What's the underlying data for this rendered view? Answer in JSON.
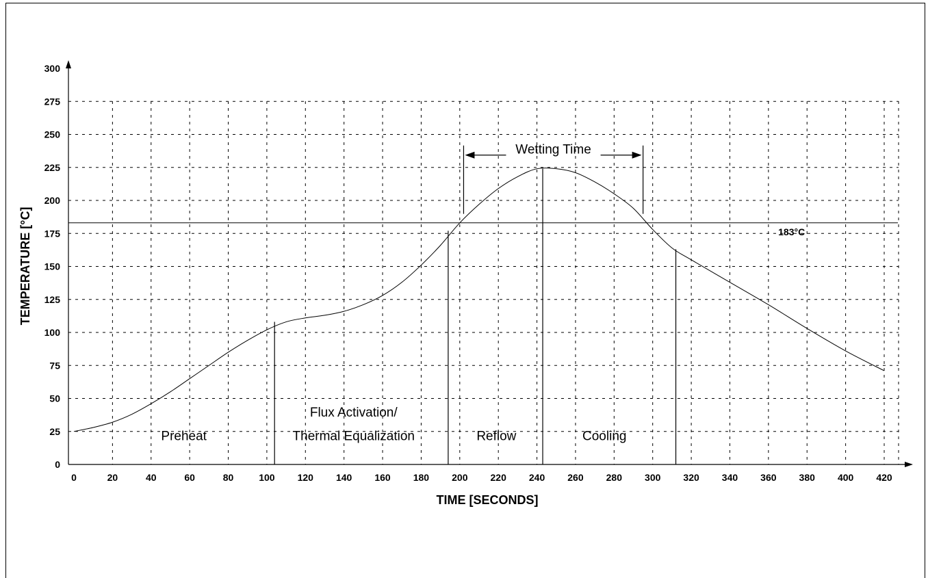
{
  "chart_data": {
    "type": "line",
    "xlabel": "TIME [SECONDS]",
    "ylabel": "TEMPERATURE [°C]",
    "xlim": [
      0,
      420
    ],
    "ylim": [
      0,
      300
    ],
    "xticks": [
      0,
      20,
      40,
      60,
      80,
      100,
      120,
      140,
      160,
      180,
      200,
      220,
      240,
      260,
      280,
      300,
      320,
      340,
      360,
      380,
      400,
      420
    ],
    "yticks": [
      0,
      25,
      50,
      75,
      100,
      125,
      150,
      175,
      200,
      225,
      250,
      275,
      300
    ],
    "grid": true,
    "series": [
      {
        "x": [
          0,
          10,
          20,
          30,
          40,
          50,
          60,
          70,
          80,
          90,
          100,
          110,
          120,
          130,
          140,
          150,
          160,
          170,
          180,
          190,
          200,
          210,
          220,
          230,
          240,
          250,
          260,
          270,
          280,
          290,
          300,
          310,
          320,
          340,
          360,
          380,
          400,
          420
        ],
        "y": [
          25,
          28,
          32,
          38,
          46,
          55,
          65,
          75,
          85,
          94,
          102,
          108,
          111,
          113,
          116,
          121,
          128,
          138,
          151,
          166,
          183,
          197,
          209,
          218,
          224,
          224,
          221,
          214,
          205,
          194,
          178,
          164,
          155,
          138,
          121,
          103,
          86,
          71
        ]
      }
    ],
    "reference_line": {
      "y": 183,
      "label": "183°C"
    },
    "boundaries": [
      {
        "x": 104,
        "y_top": 108
      },
      {
        "x": 194,
        "y_top": 177
      },
      {
        "x": 243,
        "y_top": 224
      },
      {
        "x": 312,
        "y_top": 163
      }
    ],
    "regions": [
      {
        "label": "Preheat",
        "x": 57,
        "y": 22
      },
      {
        "label": "Flux Activation/",
        "x": 145,
        "y": 40
      },
      {
        "label": "Thermal Equalization",
        "x": 145,
        "y": 22
      },
      {
        "label": "Reflow",
        "x": 219,
        "y": 22
      },
      {
        "label": "Cooling",
        "x": 275,
        "y": 22
      }
    ],
    "wetting_time": {
      "label": "Wetting Time",
      "x_start": 202,
      "x_end": 295,
      "y": 239,
      "tick_bottom_y": 195
    }
  }
}
